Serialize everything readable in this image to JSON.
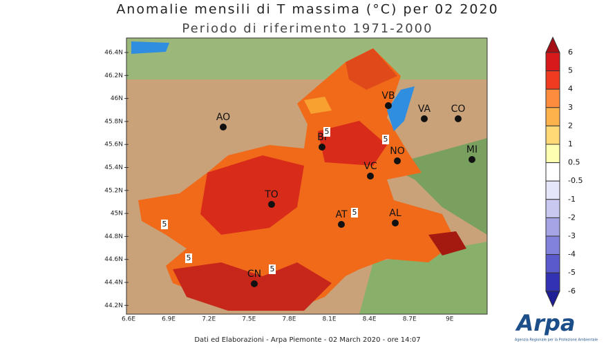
{
  "header": {
    "title": "Anomalie mensili di T massima (°C) per 02 2020",
    "subtitle": "Periodo di riferimento 1971-2000"
  },
  "axes": {
    "lat_labels": [
      "46.4N",
      "46.2N",
      "46N",
      "45.8N",
      "45.6N",
      "45.4N",
      "45.2N",
      "45N",
      "44.8N",
      "44.6N",
      "44.4N",
      "44.2N"
    ],
    "lon_labels": [
      "6.6E",
      "6.9E",
      "7.2E",
      "7.5E",
      "7.8E",
      "8.1E",
      "8.4E",
      "8.7E",
      "9E"
    ]
  },
  "cities": [
    {
      "label": "AO"
    },
    {
      "label": "VB"
    },
    {
      "label": "VA"
    },
    {
      "label": "CO"
    },
    {
      "label": "BI"
    },
    {
      "label": "NO"
    },
    {
      "label": "MI"
    },
    {
      "label": "VC"
    },
    {
      "label": "TO"
    },
    {
      "label": "AT"
    },
    {
      "label": "AL"
    },
    {
      "label": "CN"
    }
  ],
  "contour_labels": [
    "5",
    "5",
    "5",
    "5",
    "5",
    "5"
  ],
  "colorbar": {
    "labels": [
      "6",
      "5",
      "4",
      "3",
      "2",
      "1",
      "0.5",
      "-0.5",
      "-1",
      "-2",
      "-3",
      "-4",
      "-5",
      "-6"
    ],
    "colors": [
      "#a50f15",
      "#d7191c",
      "#f03b20",
      "#fd8d3c",
      "#feb24c",
      "#fed976",
      "#ffffb2",
      "#ffffff",
      "#e6e6fa",
      "#c8c8f0",
      "#a5a5e6",
      "#8282dc",
      "#5a5acd",
      "#3232b4",
      "#1e1e96"
    ]
  },
  "footer": "Dati ed Elaborazioni - Arpa Piemonte - 02 March 2020 - ore 14:07",
  "logo": {
    "name": "Arpa",
    "tagline": "Agenzia Regionale per la Protezione Ambientale"
  }
}
